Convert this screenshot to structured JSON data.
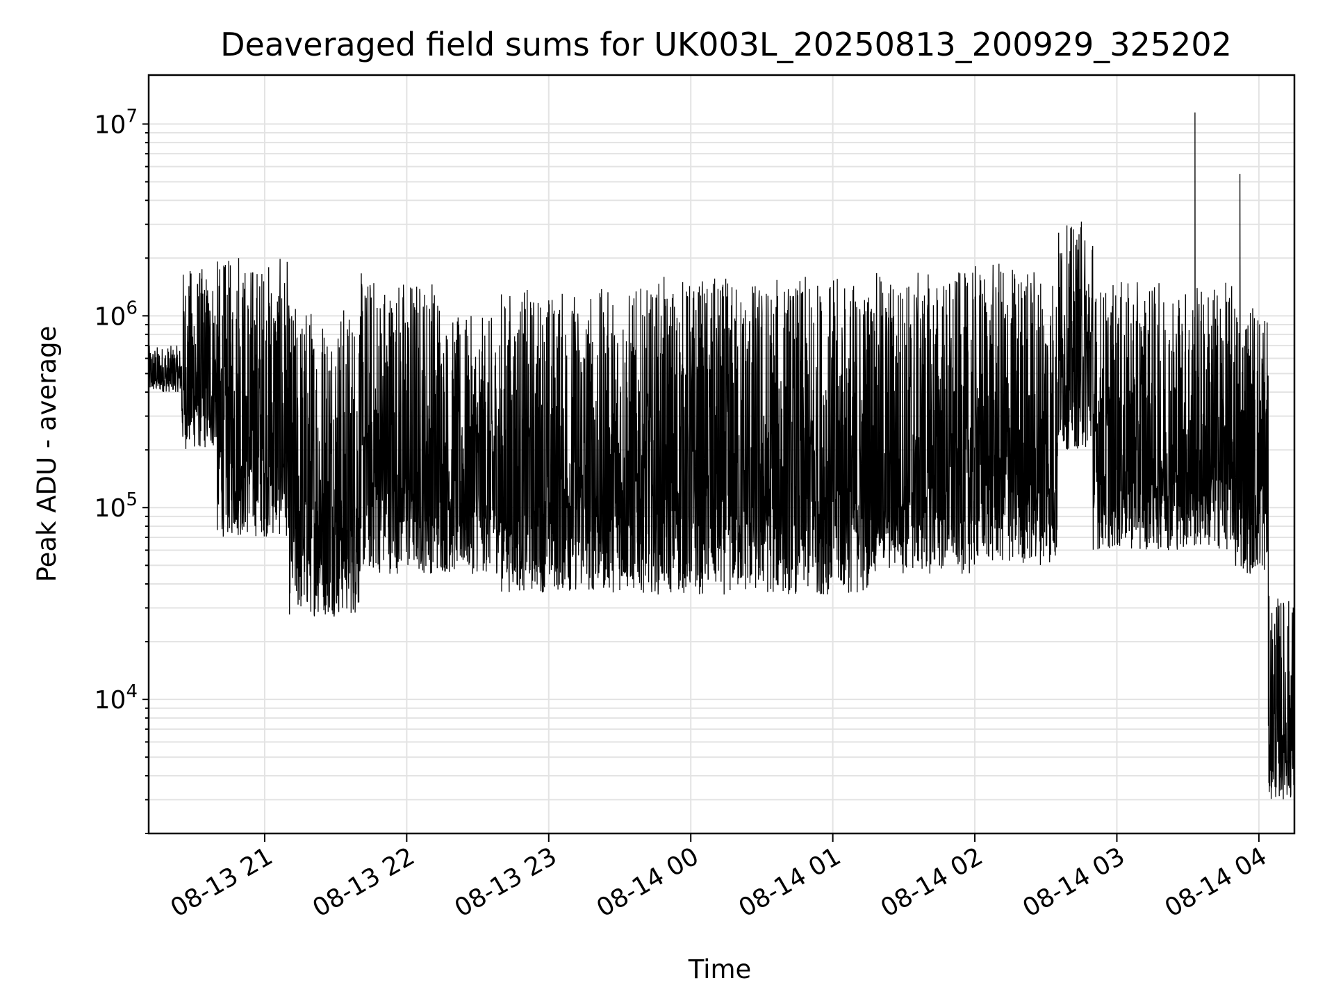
{
  "chart_data": {
    "type": "line",
    "title": "Deaveraged field sums for UK003L_20250813_200929_325202",
    "xlabel": "Time",
    "ylabel": "Peak ADU - average",
    "yscale": "log",
    "xlim": [
      "2025-08-13 20:11",
      "2025-08-14 04:15"
    ],
    "ylim": [
      2000,
      18000000
    ],
    "grid": true,
    "x_tick_labels": [
      "08-13 21",
      "08-13 22",
      "08-13 23",
      "08-14 00",
      "08-14 01",
      "08-14 02",
      "08-14 03",
      "08-14 04"
    ],
    "x_ticks": [
      "2025-08-13 21:00",
      "2025-08-13 22:00",
      "2025-08-13 23:00",
      "2025-08-14 00:00",
      "2025-08-14 01:00",
      "2025-08-14 02:00",
      "2025-08-14 03:00",
      "2025-08-14 04:00"
    ],
    "y_ticks": [
      {
        "base": "10",
        "exp": "4",
        "value": 10000
      },
      {
        "base": "10",
        "exp": "5",
        "value": 100000
      },
      {
        "base": "10",
        "exp": "6",
        "value": 1000000
      },
      {
        "base": "10",
        "exp": "7",
        "value": 10000000
      }
    ],
    "series": [
      {
        "color": "#000000",
        "segments": [
          {
            "start": "2025-08-13 20:11",
            "end": "2025-08-13 20:25",
            "low": 400000,
            "high": 700000
          },
          {
            "start": "2025-08-13 20:25",
            "end": "2025-08-13 20:40",
            "low": 200000,
            "high": 1800000
          },
          {
            "start": "2025-08-13 20:40",
            "end": "2025-08-13 21:10",
            "low": 70000,
            "high": 2000000
          },
          {
            "start": "2025-08-13 21:10",
            "end": "2025-08-13 21:40",
            "low": 27000,
            "high": 1200000
          },
          {
            "start": "2025-08-13 21:40",
            "end": "2025-08-13 22:15",
            "low": 45000,
            "high": 1700000
          },
          {
            "start": "2025-08-13 22:15",
            "end": "2025-08-13 22:40",
            "low": 45000,
            "high": 1000000
          },
          {
            "start": "2025-08-13 22:40",
            "end": "2025-08-13 23:45",
            "low": 36000,
            "high": 1400000
          },
          {
            "start": "2025-08-13 23:45",
            "end": "2025-08-14 01:15",
            "low": 35000,
            "high": 1600000
          },
          {
            "start": "2025-08-14 01:15",
            "end": "2025-08-14 02:00",
            "low": 45000,
            "high": 1700000
          },
          {
            "start": "2025-08-14 02:00",
            "end": "2025-08-14 02:35",
            "low": 50000,
            "high": 1900000
          },
          {
            "start": "2025-08-14 02:35",
            "end": "2025-08-14 02:50",
            "low": 200000,
            "high": 3000000
          },
          {
            "start": "2025-08-14 02:50",
            "end": "2025-08-14 03:50",
            "low": 60000,
            "high": 1500000
          },
          {
            "start": "2025-08-14 03:50",
            "end": "2025-08-14 04:04",
            "low": 45000,
            "high": 1300000
          },
          {
            "start": "2025-08-14 04:04",
            "end": "2025-08-14 04:15",
            "low": 3000,
            "high": 35000
          }
        ],
        "spikes": [
          {
            "t": "2025-08-14 03:33",
            "value": 11500000
          },
          {
            "t": "2025-08-14 03:52",
            "value": 5500000
          },
          {
            "t": "2025-08-14 02:45",
            "value": 3100000
          },
          {
            "t": "2025-08-13 20:49",
            "value": 2000000
          }
        ]
      }
    ]
  }
}
